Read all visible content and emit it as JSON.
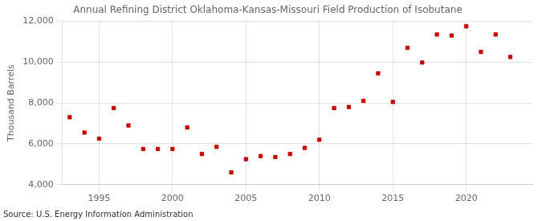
{
  "chart_data": {
    "type": "scatter",
    "title": "Annual Refining District Oklahoma-Kansas-Missouri Field Production of Isobutane",
    "ylabel": "Thousand Barrels",
    "annotations": [
      "Source: U.S. Energy Information Administration"
    ],
    "x": [
      1993,
      1994,
      1995,
      1996,
      1997,
      1998,
      1999,
      2000,
      2001,
      2002,
      2003,
      2004,
      2005,
      2006,
      2007,
      2008,
      2009,
      2010,
      2011,
      2012,
      2013,
      2014,
      2015,
      2016,
      2017,
      2018,
      2019,
      2020,
      2021,
      2022,
      2023
    ],
    "values": [
      7300,
      6550,
      6250,
      7750,
      6900,
      5750,
      5750,
      5750,
      6800,
      5500,
      5850,
      4600,
      5250,
      5400,
      5350,
      5500,
      5800,
      6200,
      7750,
      7800,
      8100,
      9450,
      8050,
      10700,
      9980,
      11350,
      11300,
      11750,
      10500,
      11350,
      10250
    ],
    "color": "#cc0000",
    "marker": "square",
    "xlim": [
      1992.5,
      2024.5
    ],
    "xticks": [
      1995,
      2000,
      2005,
      2010,
      2015,
      2020
    ],
    "ylim": [
      4000,
      12000
    ],
    "yticks": [
      {
        "value": 4000,
        "label": "4,000"
      },
      {
        "value": 6000,
        "label": "6,000"
      },
      {
        "value": 8000,
        "label": "8,000"
      },
      {
        "value": 10000,
        "label": "10,000"
      },
      {
        "value": 12000,
        "label": "12,000"
      }
    ],
    "grid": true
  }
}
